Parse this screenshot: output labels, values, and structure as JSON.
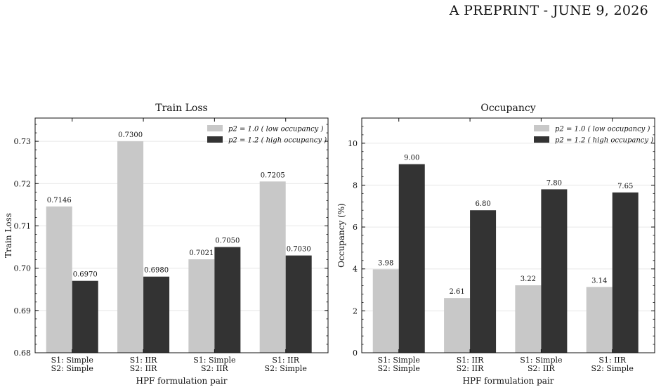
{
  "header": {
    "text": "A PREPRINT - JUNE 9, 2026"
  },
  "chart_data": [
    {
      "type": "bar",
      "title": "Train Loss",
      "xlabel": "HPF formulation pair",
      "ylabel": "Train Loss",
      "categories": [
        [
          "S1: Simple",
          "S2: Simple"
        ],
        [
          "S1: IIR",
          "S2: IIR"
        ],
        [
          "S1: Simple",
          "S2: IIR"
        ],
        [
          "S1: IIR",
          "S2: Simple"
        ]
      ],
      "series": [
        {
          "name": "p2 = 1.0 ( low occupancy )",
          "color": "#c8c8c8",
          "values": [
            0.7146,
            0.73,
            0.7021,
            0.7205
          ],
          "labels": [
            "0.7146",
            "0.7300",
            "0.7021",
            "0.7205"
          ]
        },
        {
          "name": "p2 = 1.2 ( high occupancy )",
          "color": "#333333",
          "values": [
            0.697,
            0.698,
            0.705,
            0.703
          ],
          "labels": [
            "0.6970",
            "0.6980",
            "0.7050",
            "0.7030"
          ]
        }
      ],
      "ylim": [
        0.68,
        0.7355
      ],
      "yticks": [
        0.68,
        0.69,
        0.7,
        0.71,
        0.72,
        0.73
      ],
      "ytick_labels": [
        "0.68",
        "0.69",
        "0.70",
        "0.71",
        "0.72",
        "0.73"
      ],
      "grid": "horizontal",
      "legend": "top-right"
    },
    {
      "type": "bar",
      "title": "Occupancy",
      "xlabel": "HPF formulation pair",
      "ylabel": "Occupancy (%)",
      "categories": [
        [
          "S1: Simple",
          "S2: Simple"
        ],
        [
          "S1: IIR",
          "S2: IIR"
        ],
        [
          "S1: Simple",
          "S2: IIR"
        ],
        [
          "S1: IIR",
          "S2: Simple"
        ]
      ],
      "series": [
        {
          "name": "p2 = 1.0 ( low occupancy )",
          "color": "#c8c8c8",
          "values": [
            3.98,
            2.61,
            3.22,
            3.14
          ],
          "labels": [
            "3.98",
            "2.61",
            "3.22",
            "3.14"
          ]
        },
        {
          "name": "p2 = 1.2 ( high occupancy )",
          "color": "#333333",
          "values": [
            9.0,
            6.8,
            7.8,
            7.65
          ],
          "labels": [
            "9.00",
            "6.80",
            "7.80",
            "7.65"
          ]
        }
      ],
      "ylim": [
        0,
        11.2
      ],
      "yticks": [
        0,
        2,
        4,
        6,
        8,
        10
      ],
      "ytick_labels": [
        "0",
        "2",
        "4",
        "6",
        "8",
        "10"
      ],
      "grid": "horizontal",
      "legend": "top-right"
    }
  ]
}
